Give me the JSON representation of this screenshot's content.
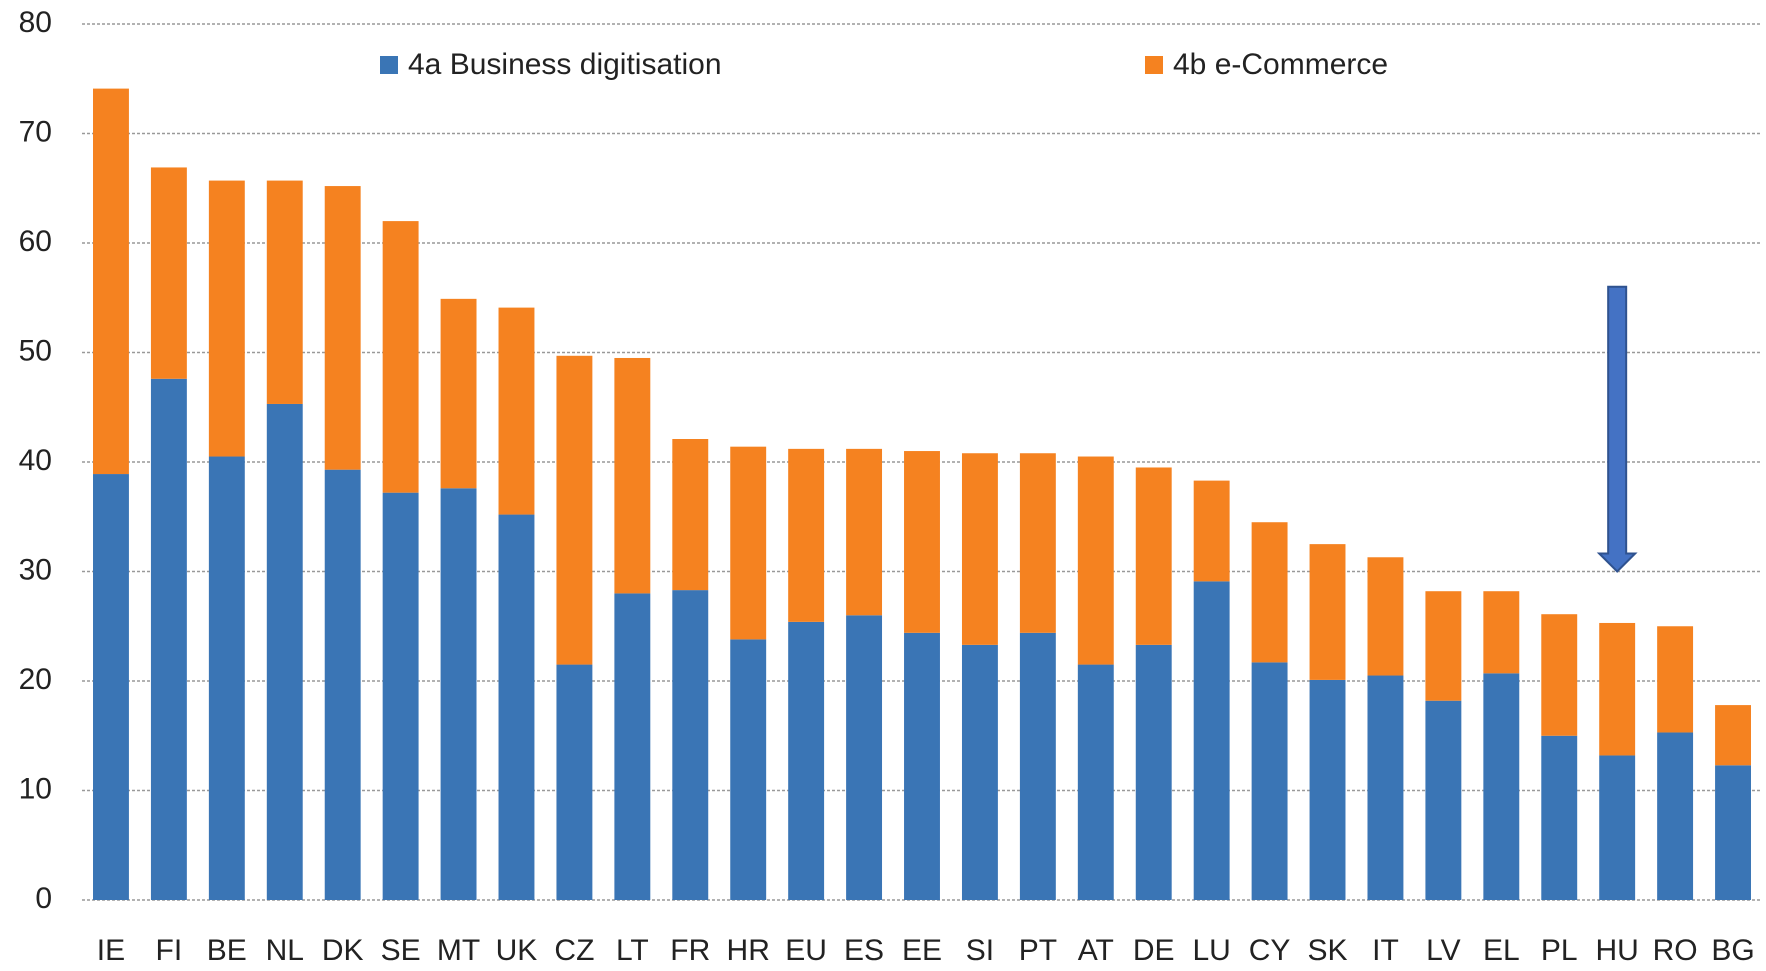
{
  "chart_data": {
    "type": "stacked_bar",
    "categories": [
      "IE",
      "FI",
      "BE",
      "NL",
      "DK",
      "SE",
      "MT",
      "UK",
      "CZ",
      "LT",
      "FR",
      "HR",
      "EU",
      "ES",
      "EE",
      "SI",
      "PT",
      "AT",
      "DE",
      "LU",
      "CY",
      "SK",
      "IT",
      "LV",
      "EL",
      "PL",
      "HU",
      "RO",
      "BG"
    ],
    "series": [
      {
        "name": "4a Business digitisation",
        "color": "#3a75b5",
        "values": [
          38.9,
          47.6,
          40.5,
          45.3,
          39.3,
          37.2,
          37.6,
          35.2,
          21.5,
          28.0,
          28.3,
          23.8,
          25.4,
          26.0,
          24.4,
          23.3,
          24.4,
          21.5,
          23.3,
          29.1,
          21.7,
          20.1,
          20.5,
          18.2,
          20.7,
          15.0,
          13.2,
          15.3,
          12.3
        ]
      },
      {
        "name": "4b e-Commerce",
        "color": "#f58220",
        "values": [
          35.2,
          19.3,
          25.2,
          20.4,
          25.9,
          24.8,
          17.3,
          18.9,
          28.2,
          21.5,
          13.8,
          17.6,
          15.8,
          15.2,
          16.6,
          17.5,
          16.4,
          19.0,
          16.2,
          9.2,
          12.8,
          12.4,
          10.8,
          10.0,
          7.5,
          11.1,
          12.1,
          9.7,
          5.5
        ]
      }
    ],
    "ylim": [
      0,
      80
    ],
    "yticks": [
      0,
      10,
      20,
      30,
      40,
      50,
      60,
      70,
      80
    ],
    "grid": true
  }
}
